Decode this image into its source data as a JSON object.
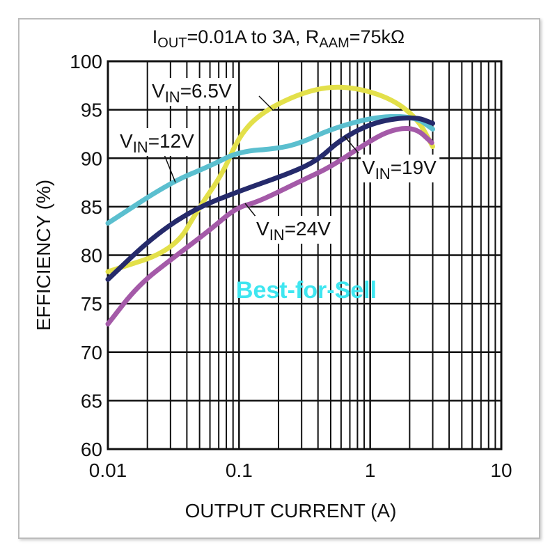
{
  "chart_data": {
    "type": "line",
    "title": {
      "prefix": "I",
      "sub1": "OUT",
      "mid": "=0.01A to 3A, R",
      "sub2": "AAM",
      "suffix": "=75kΩ"
    },
    "xlabel": "OUTPUT CURRENT (A)",
    "ylabel": "EFFICIENCY (%)",
    "xscale": "log",
    "xlim": [
      0.01,
      10
    ],
    "ylim": [
      60,
      100
    ],
    "xticks": [
      {
        "v": 0.01,
        "label": "0.01"
      },
      {
        "v": 0.1,
        "label": "0.1"
      },
      {
        "v": 1,
        "label": "1"
      },
      {
        "v": 10,
        "label": "10"
      }
    ],
    "yticks": [
      60,
      65,
      70,
      75,
      80,
      85,
      90,
      95,
      100
    ],
    "grid": true,
    "watermark": "Best-for-Sell",
    "series": [
      {
        "name": "6.5V",
        "label_prefix": "V",
        "label_sub": "IN",
        "color": "#e3e04a",
        "x": [
          0.01,
          0.032,
          0.05,
          0.075,
          0.1,
          0.15,
          0.33,
          0.65,
          1.4,
          2.3,
          3
        ],
        "y": [
          78.3,
          80.5,
          85,
          88.4,
          92.3,
          94.8,
          97,
          97.5,
          96.3,
          94.1,
          91.2
        ]
      },
      {
        "name": "12V",
        "label_prefix": "V",
        "label_sub": "IN",
        "color": "#5bbfcf",
        "x": [
          0.01,
          0.03,
          0.06,
          0.1,
          0.2,
          0.3,
          0.5,
          1.1,
          2.2,
          3
        ],
        "y": [
          83.3,
          87.5,
          89.2,
          90.7,
          91,
          91.6,
          93,
          94.3,
          94.3,
          93
        ]
      },
      {
        "name": "19V",
        "label_prefix": "V",
        "label_sub": "IN",
        "color": "#252a6b",
        "x": [
          0.01,
          0.022,
          0.046,
          0.1,
          0.25,
          0.4,
          0.6,
          1.1,
          2.2,
          3
        ],
        "y": [
          77.5,
          81.9,
          84.8,
          86.6,
          88.5,
          89.8,
          92,
          93.8,
          94.3,
          93.6
        ]
      },
      {
        "name": "24V",
        "label_prefix": "V",
        "label_sub": "IN",
        "color": "#a45aa8",
        "x": [
          0.01,
          0.017,
          0.032,
          0.06,
          0.095,
          0.14,
          0.29,
          0.5,
          0.85,
          1.4,
          2.2,
          2.95
        ],
        "y": [
          72.9,
          76.9,
          79.8,
          82.6,
          84.9,
          85.5,
          87.6,
          89.1,
          91.2,
          92.9,
          93.2,
          91.6
        ]
      }
    ]
  }
}
